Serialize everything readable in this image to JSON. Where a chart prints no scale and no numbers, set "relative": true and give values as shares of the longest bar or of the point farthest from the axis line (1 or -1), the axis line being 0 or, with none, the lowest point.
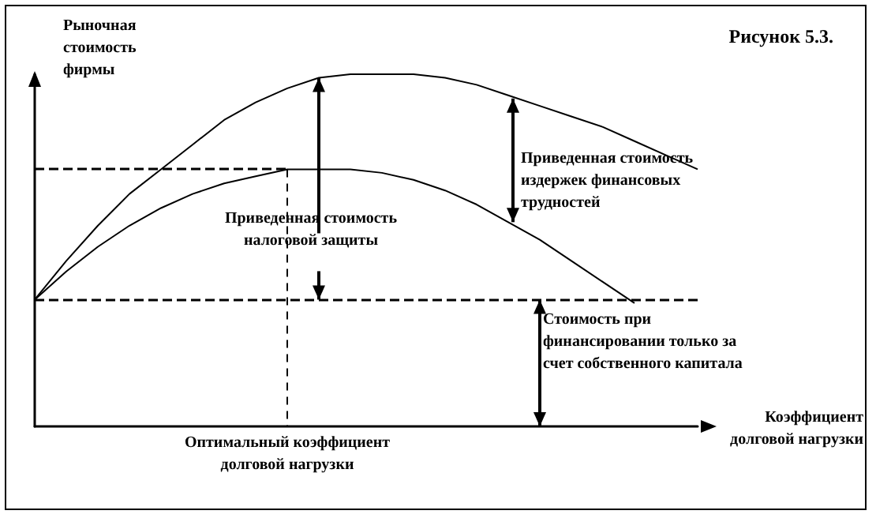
{
  "chart_data": {
    "type": "line",
    "relative": true,
    "title": "Рисунок 5.3.",
    "ylabel": "Рыночная стоимость фирмы",
    "xlabel": "Коэффициент долговой нагрузки",
    "categories": [
      null,
      null,
      null,
      null,
      null,
      null,
      null,
      null,
      null,
      null,
      null,
      null,
      null,
      null,
      null,
      null,
      null,
      null,
      null,
      null,
      null,
      null
    ],
    "series": [
      {
        "color": "#000000",
        "values": [
          0.36,
          0.47,
          0.57,
          0.66,
          0.73,
          0.8,
          0.87,
          0.92,
          0.96,
          0.99,
          1.0,
          1.0,
          1.0,
          0.99,
          0.97,
          0.94,
          0.91,
          0.88,
          0.85,
          0.81,
          0.77,
          0.73
        ]
      },
      {
        "color": "#000000",
        "values": [
          0.36,
          0.44,
          0.51,
          0.57,
          0.62,
          0.66,
          0.69,
          0.71,
          0.73,
          0.73,
          0.73,
          0.72,
          0.7,
          0.67,
          0.63,
          0.58,
          0.53,
          0.47,
          0.41,
          0.35,
          null,
          null
        ]
      }
    ],
    "ref_lines": [
      {
        "axis": "y",
        "value": 0.36,
        "line_style": "dashed",
        "color": "#000000"
      },
      {
        "axis": "y",
        "value": 0.73,
        "line_style": "dashed",
        "color": "#000000"
      }
    ],
    "annotations": [
      "Приведенная стоимость издержек финансовых трудностей",
      "Приведенная стоимость налоговой защиты",
      "Стоимость при финансировании только за счет собственного капитала",
      "Оптимальный коэффициент долговой нагрузки"
    ],
    "grid": false,
    "marker": "none",
    "line_style": "solid"
  }
}
